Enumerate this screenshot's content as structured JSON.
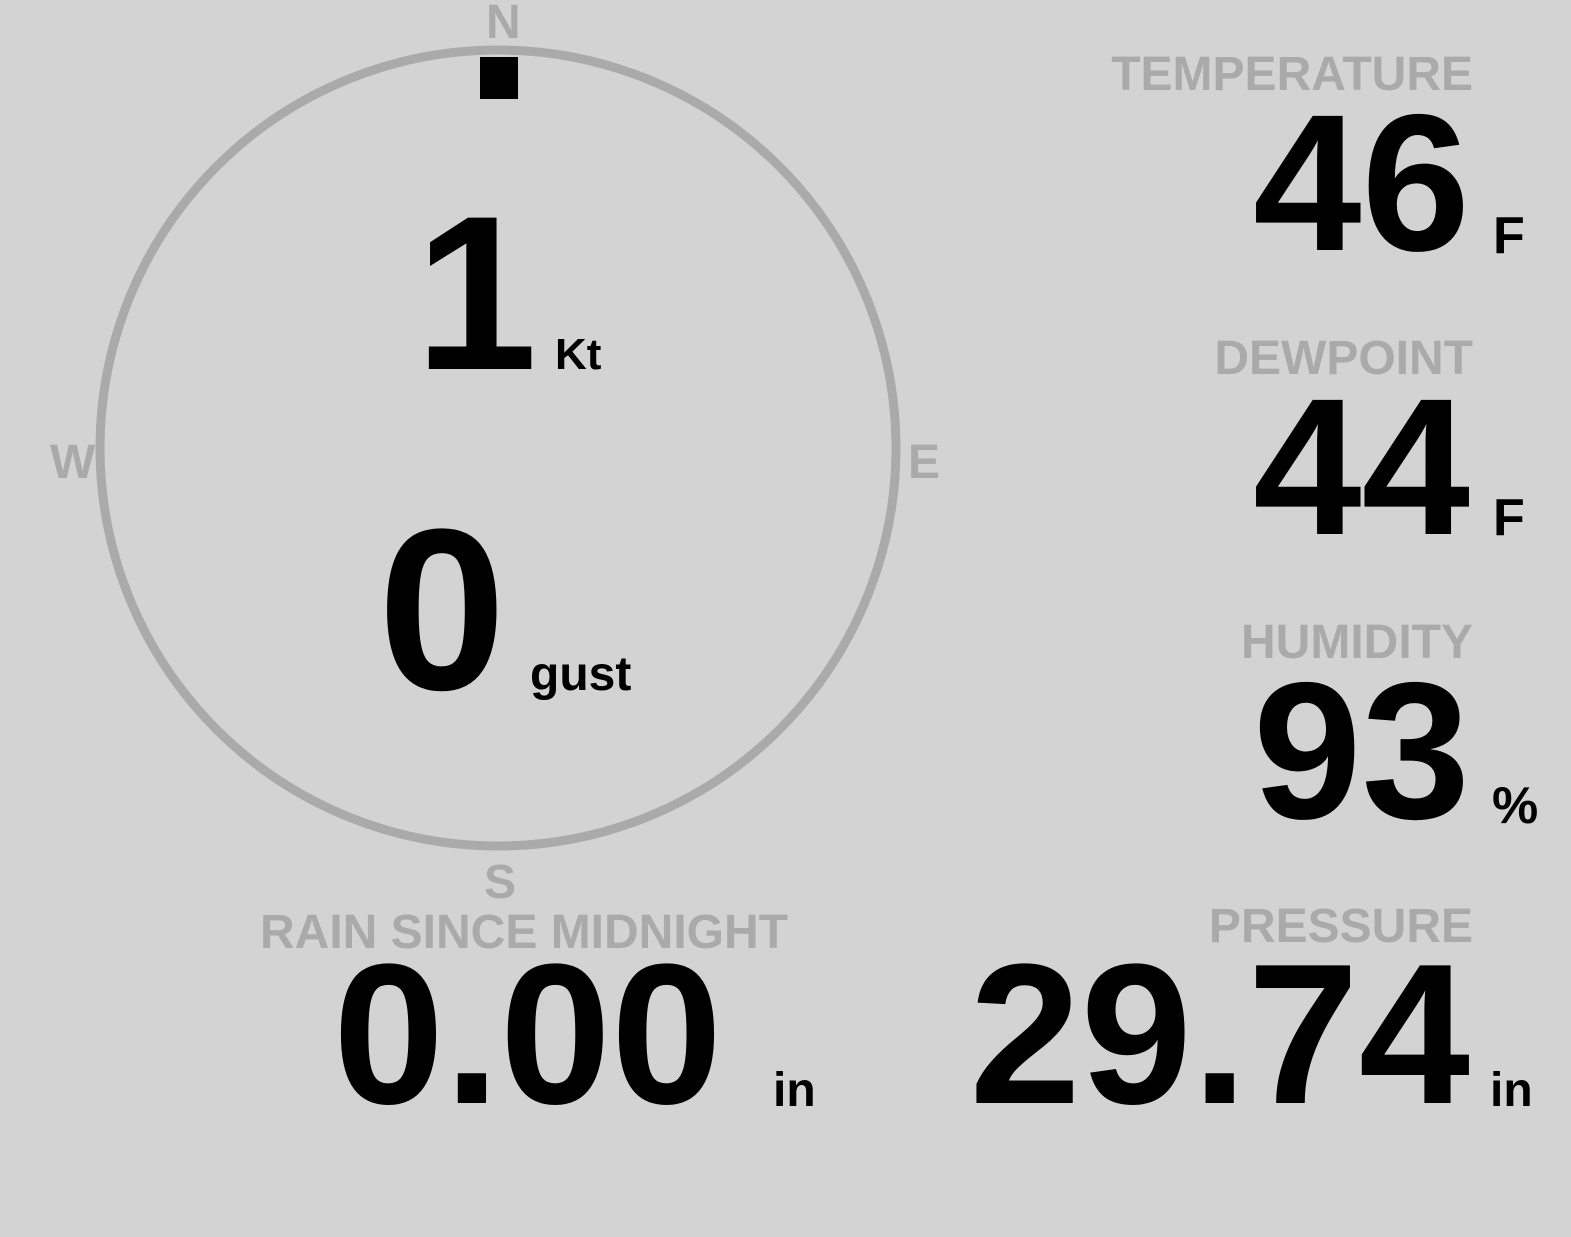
{
  "colors": {
    "background": "#d3d3d3",
    "label": "#aaaaaa",
    "value": "#000000"
  },
  "wind": {
    "compass": {
      "n": "N",
      "e": "E",
      "s": "S",
      "w": "W"
    },
    "direction_deg": 0,
    "speed": "1",
    "speed_unit": "Kt",
    "gust": "0",
    "gust_unit": "gust"
  },
  "temperature": {
    "label": "TEMPERATURE",
    "value": "46",
    "unit": "F"
  },
  "dewpoint": {
    "label": "DEWPOINT",
    "value": "44",
    "unit": "F"
  },
  "humidity": {
    "label": "HUMIDITY",
    "value": "93",
    "unit": "%"
  },
  "pressure": {
    "label": "PRESSURE",
    "value": "29.74",
    "unit": "in"
  },
  "rain": {
    "label": "RAIN SINCE MIDNIGHT",
    "value": "0.00",
    "unit": "in"
  }
}
